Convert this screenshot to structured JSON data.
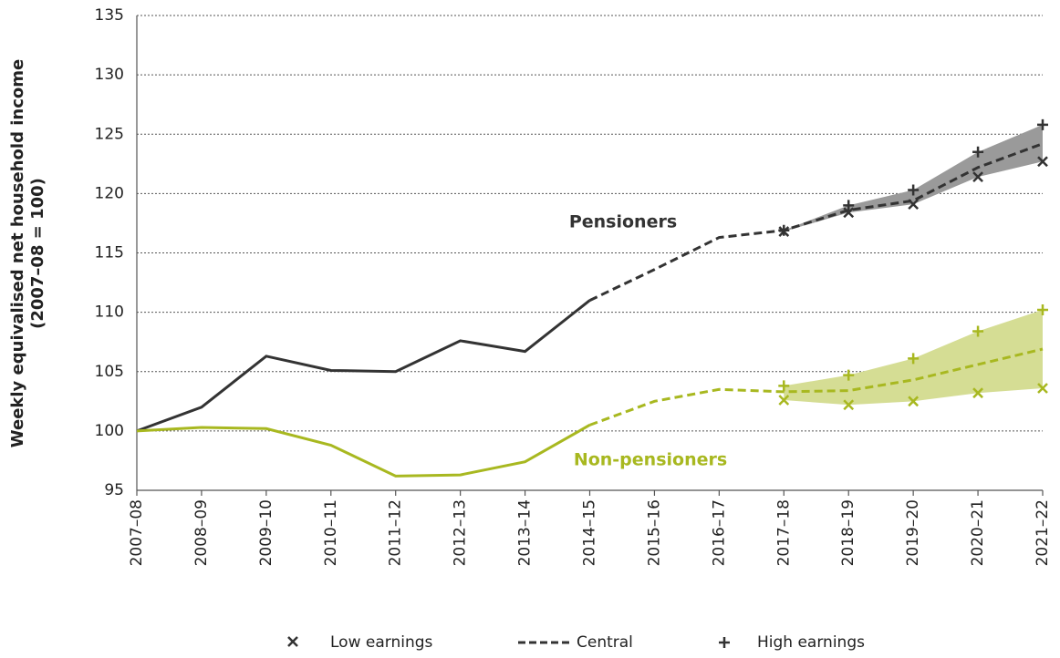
{
  "chart_data": {
    "type": "line",
    "y_label": [
      "Weekly equivalised net household  income",
      "(2007–08 = 100)"
    ],
    "categories": [
      "2007–08",
      "2008–09",
      "2009–10",
      "2010–11",
      "2011–12",
      "2012–13",
      "2013–14",
      "2014–15",
      "2015–16",
      "2016–17",
      "2017–18",
      "2018–19",
      "2019–20",
      "2020–21",
      "2021–22"
    ],
    "ylim": [
      95,
      135
    ],
    "yticks": [
      95,
      100,
      105,
      110,
      115,
      120,
      125,
      130,
      135
    ],
    "grid": true,
    "legend": [
      "Low earnings",
      "Central",
      "High earnings"
    ],
    "groups": [
      {
        "label": "Pensioners",
        "color": "#333333",
        "band_color": "#9a9a9a",
        "actual": [
          100,
          102.0,
          106.3,
          105.1,
          105.0,
          107.6,
          106.7,
          111.0,
          null,
          null,
          null,
          null,
          null,
          null,
          null
        ],
        "central": [
          null,
          null,
          null,
          null,
          null,
          null,
          null,
          111.0,
          113.6,
          116.3,
          116.9,
          118.6,
          119.4,
          122.2,
          124.2
        ],
        "low": [
          null,
          null,
          null,
          null,
          null,
          null,
          null,
          null,
          null,
          null,
          116.8,
          118.4,
          119.1,
          121.4,
          122.7
        ],
        "high": [
          null,
          null,
          null,
          null,
          null,
          null,
          null,
          null,
          null,
          null,
          116.9,
          119.0,
          120.3,
          123.5,
          125.8
        ]
      },
      {
        "label": "Non-pensioners",
        "color": "#a8b820",
        "band_color": "#d5dd94",
        "actual": [
          100,
          100.3,
          100.2,
          98.8,
          96.2,
          96.3,
          97.4,
          100.5,
          null,
          null,
          null,
          null,
          null,
          null,
          null
        ],
        "central": [
          null,
          null,
          null,
          null,
          null,
          null,
          null,
          100.5,
          102.5,
          103.5,
          103.3,
          103.4,
          104.3,
          105.6,
          106.9
        ],
        "low": [
          null,
          null,
          null,
          null,
          null,
          null,
          null,
          null,
          null,
          null,
          102.6,
          102.2,
          102.5,
          103.2,
          103.6
        ],
        "high": [
          null,
          null,
          null,
          null,
          null,
          null,
          null,
          null,
          null,
          null,
          103.8,
          104.7,
          106.1,
          108.4,
          110.2
        ]
      }
    ]
  }
}
